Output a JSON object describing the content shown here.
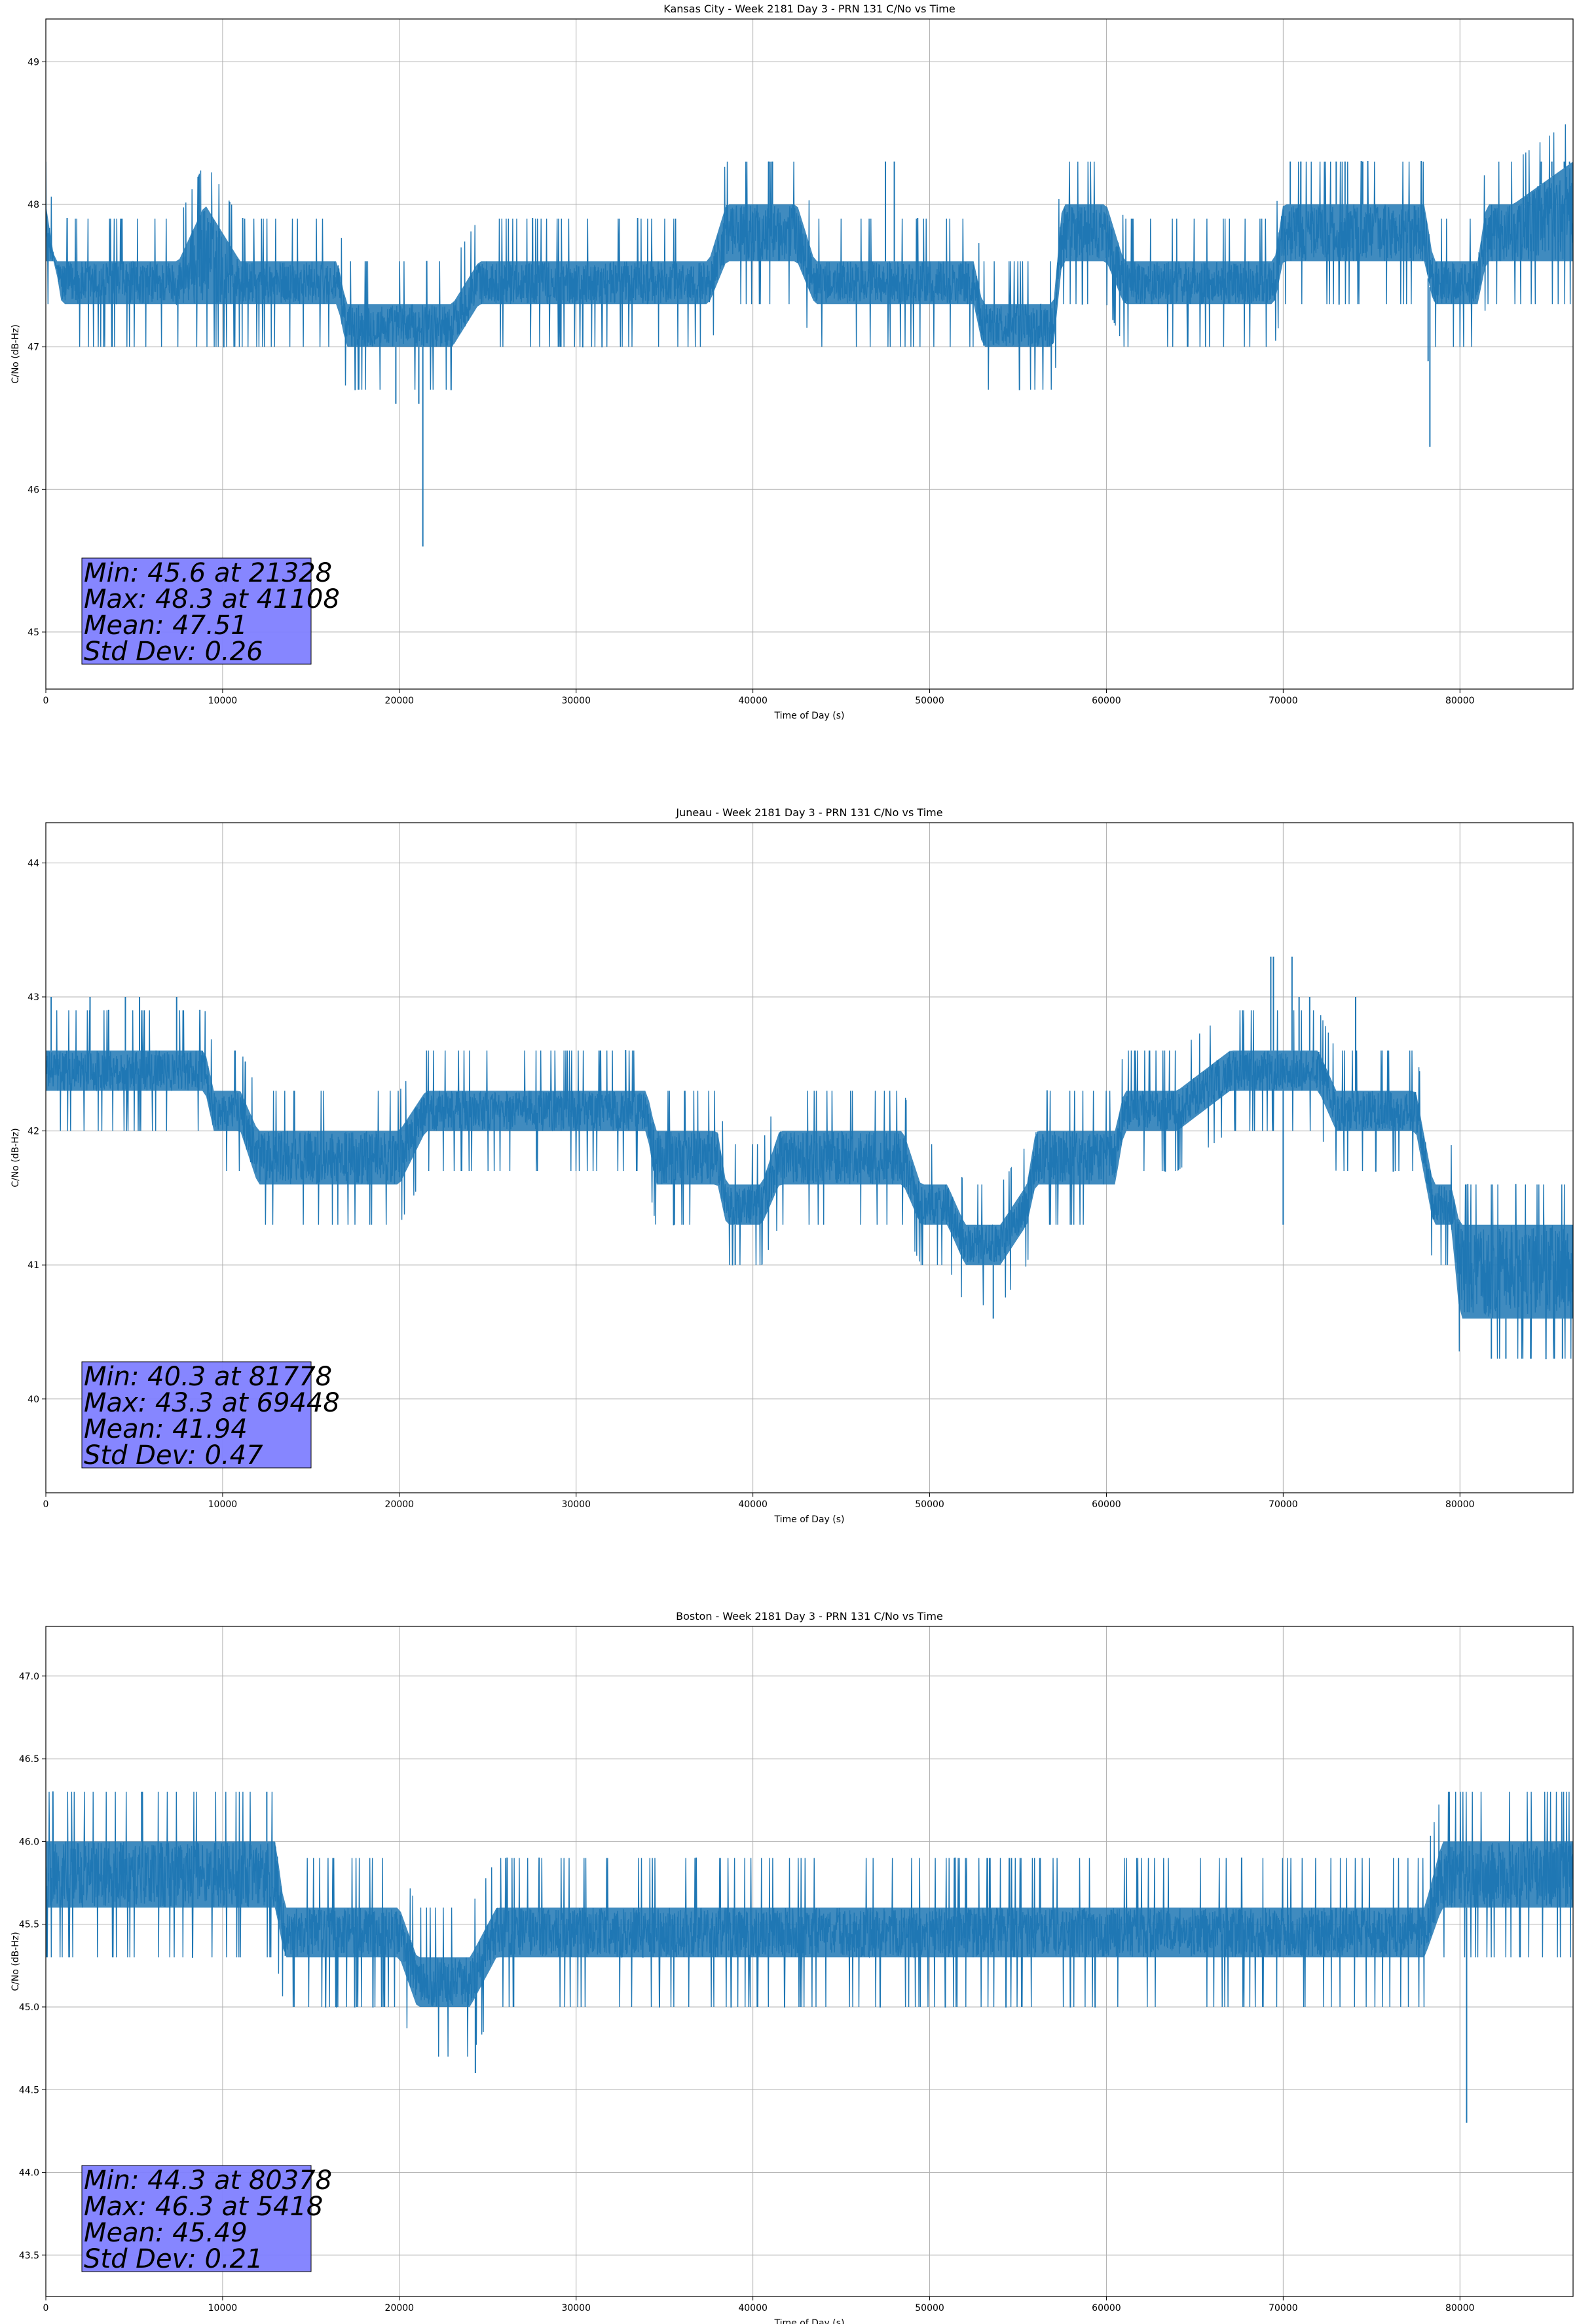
{
  "figure": {
    "chart_data": [
      {
        "type": "line",
        "title": "Kansas City - Week 2181 Day 3 - PRN 131 C/No vs Time",
        "xlabel": "Time of Day (s)",
        "ylabel": "C/No (dB-Hz)",
        "xlim": [
          0,
          86400
        ],
        "ylim": [
          44.6,
          49.3
        ],
        "xticks": [
          0,
          10000,
          20000,
          30000,
          40000,
          50000,
          60000,
          70000,
          80000
        ],
        "yticks": [
          45,
          46,
          47,
          48,
          49
        ],
        "grid": true,
        "series_color": "#1f77b4",
        "stats_box": {
          "lines": [
            "Min: 45.6 at 21328",
            "Max: 48.3 at 41108",
            "Mean: 47.51",
            "Std Dev: 0.26"
          ],
          "fill": "#7f7fff"
        },
        "series": [
          {
            "band_x": [
              0,
              500,
              900,
              2000,
              4000,
              6000,
              7500,
              9000,
              11000,
              13000,
              15000,
              16500,
              17000,
              18500,
              20000,
              21500,
              23000,
              24500,
              27000,
              30000,
              33000,
              35500,
              37500,
              38500,
              40000,
              42500,
              43500,
              44000,
              46000,
              47500,
              48000,
              50000,
              51500,
              52500,
              53000,
              55000,
              57000,
              57500,
              58000,
              60000,
              61000,
              62000,
              65000,
              67000,
              69500,
              70000,
              72000,
              75000,
              78000,
              78500,
              79000,
              80000,
              81000,
              81500,
              83000,
              86400
            ],
            "band_low": [
              47.6,
              47.6,
              47.3,
              47.3,
              47.3,
              47.3,
              47.3,
              47.3,
              47.3,
              47.3,
              47.3,
              47.3,
              47.0,
              47.0,
              47.0,
              47.0,
              47.0,
              47.3,
              47.3,
              47.3,
              47.3,
              47.3,
              47.3,
              47.6,
              47.6,
              47.6,
              47.3,
              47.3,
              47.3,
              47.3,
              47.3,
              47.3,
              47.3,
              47.3,
              47.0,
              47.0,
              47.0,
              47.6,
              47.6,
              47.6,
              47.3,
              47.3,
              47.3,
              47.3,
              47.3,
              47.6,
              47.6,
              47.6,
              47.6,
              47.3,
              47.3,
              47.3,
              47.3,
              47.6,
              47.6,
              47.6
            ],
            "band_high": [
              48.0,
              47.6,
              47.6,
              47.6,
              47.6,
              47.6,
              47.6,
              48.0,
              47.6,
              47.6,
              47.6,
              47.6,
              47.3,
              47.3,
              47.3,
              47.3,
              47.3,
              47.6,
              47.6,
              47.6,
              47.6,
              47.6,
              47.6,
              48.0,
              48.0,
              48.0,
              47.6,
              47.6,
              47.6,
              47.6,
              47.6,
              47.6,
              47.6,
              47.6,
              47.3,
              47.3,
              47.3,
              48.0,
              48.0,
              48.0,
              47.6,
              47.6,
              47.6,
              47.6,
              47.6,
              48.0,
              48.0,
              48.0,
              48.0,
              47.6,
              47.6,
              47.6,
              47.6,
              48.0,
              48.0,
              48.3
            ],
            "spikes": [
              [
                19800,
                46.6
              ],
              [
                21100,
                46.6
              ],
              [
                21328,
                45.6
              ],
              [
                78300,
                46.3
              ],
              [
                78200,
                46.9
              ],
              [
                41108,
                48.3
              ],
              [
                40900,
                48.3
              ],
              [
                47500,
                48.3
              ],
              [
                48000,
                48.3
              ],
              [
                70400,
                48.3
              ],
              [
                71000,
                48.3
              ],
              [
                73000,
                48.3
              ],
              [
                73500,
                48.3
              ],
              [
                74500,
                48.3
              ],
              [
                84600,
                48.3
              ],
              [
                85200,
                48.3
              ],
              [
                85900,
                48.3
              ],
              [
                86200,
                48.3
              ]
            ]
          }
        ]
      },
      {
        "type": "line",
        "title": "Juneau - Week 2181 Day 3 - PRN 131 C/No vs Time",
        "xlabel": "Time of Day (s)",
        "ylabel": "C/No (dB-Hz)",
        "xlim": [
          0,
          86400
        ],
        "ylim": [
          39.3,
          44.3
        ],
        "xticks": [
          0,
          10000,
          20000,
          30000,
          40000,
          50000,
          60000,
          70000,
          80000
        ],
        "yticks": [
          40,
          41,
          42,
          43,
          44
        ],
        "grid": true,
        "series_color": "#1f77b4",
        "stats_box": {
          "lines": [
            "Min: 40.3 at 81778",
            "Max: 43.3 at 69448",
            "Mean: 41.94",
            "Std Dev: 0.47"
          ],
          "fill": "#7f7fff"
        },
        "series": [
          {
            "band_x": [
              0,
              3000,
              6000,
              9000,
              9500,
              11000,
              12000,
              15000,
              18000,
              20000,
              21500,
              25000,
              28000,
              29000,
              32000,
              34000,
              34500,
              36000,
              38000,
              38500,
              39500,
              40500,
              41500,
              44000,
              46500,
              48500,
              49500,
              51000,
              52000,
              54000,
              55500,
              56000,
              59000,
              60500,
              61000,
              64000,
              67000,
              70000,
              72000,
              73000,
              75000,
              77500,
              78500,
              79500,
              80000,
              81500,
              83000,
              86400
            ],
            "band_low": [
              42.3,
              42.3,
              42.3,
              42.3,
              42.0,
              42.0,
              41.6,
              41.6,
              41.6,
              41.6,
              42.0,
              42.0,
              42.0,
              42.0,
              42.0,
              42.0,
              41.6,
              41.6,
              41.6,
              41.3,
              41.3,
              41.3,
              41.6,
              41.6,
              41.6,
              41.6,
              41.3,
              41.3,
              41.0,
              41.0,
              41.3,
              41.6,
              41.6,
              41.6,
              42.0,
              42.0,
              42.3,
              42.3,
              42.3,
              42.0,
              42.0,
              42.0,
              41.3,
              41.3,
              40.6,
              40.6,
              40.6,
              40.6
            ],
            "band_high": [
              42.6,
              42.6,
              42.6,
              42.6,
              42.3,
              42.3,
              42.0,
              42.0,
              42.0,
              42.0,
              42.3,
              42.3,
              42.3,
              42.3,
              42.3,
              42.3,
              42.0,
              42.0,
              42.0,
              41.6,
              41.6,
              41.6,
              42.0,
              42.0,
              42.0,
              42.0,
              41.6,
              41.6,
              41.3,
              41.3,
              41.6,
              42.0,
              42.0,
              42.0,
              42.3,
              42.3,
              42.6,
              42.6,
              42.6,
              42.3,
              42.3,
              42.3,
              41.6,
              41.6,
              41.3,
              41.3,
              41.3,
              41.3
            ],
            "spikes": [
              [
                300,
                43.0
              ],
              [
                2500,
                43.0
              ],
              [
                4500,
                43.0
              ],
              [
                5300,
                43.0
              ],
              [
                7400,
                43.0
              ],
              [
                53600,
                40.6
              ],
              [
                69300,
                43.3
              ],
              [
                69448,
                43.3
              ],
              [
                70500,
                43.3
              ],
              [
                70900,
                43.0
              ],
              [
                71500,
                43.0
              ],
              [
                74100,
                43.0
              ],
              [
                39000,
                41.0
              ],
              [
                70000,
                41.3
              ],
              [
                81778,
                40.3
              ],
              [
                82600,
                40.3
              ],
              [
                84000,
                40.3
              ],
              [
                85800,
                40.3
              ]
            ]
          }
        ]
      },
      {
        "type": "line",
        "title": "Boston - Week 2181 Day 3 - PRN 131 C/No vs Time",
        "xlabel": "Time of Day (s)",
        "ylabel": "C/No (dB-Hz)",
        "xlim": [
          0,
          86400
        ],
        "ylim": [
          43.25,
          47.3
        ],
        "xticks": [
          0,
          10000,
          20000,
          30000,
          40000,
          50000,
          60000,
          70000,
          80000
        ],
        "yticks": [
          43.5,
          44.0,
          44.5,
          45.0,
          45.5,
          46.0,
          46.5,
          47.0
        ],
        "ytick_labels": [
          "43.5",
          "44.0",
          "44.5",
          "45.0",
          "45.5",
          "46.0",
          "46.5",
          "47.0"
        ],
        "grid": true,
        "series_color": "#1f77b4",
        "stats_box": {
          "lines": [
            "Min: 44.3 at 80378",
            "Max: 46.3 at 5418",
            "Mean: 45.49",
            "Std Dev: 0.21"
          ],
          "fill": "#7f7fff"
        },
        "series": [
          {
            "band_x": [
              0,
              2000,
              5000,
              9000,
              11000,
              13000,
              13500,
              15000,
              18000,
              20000,
              21000,
              24000,
              25500,
              26000,
              30000,
              35000,
              40000,
              45000,
              50000,
              55000,
              60000,
              65000,
              70000,
              75000,
              78000,
              79000,
              80000,
              82000,
              84000,
              86400
            ],
            "band_low": [
              45.6,
              45.6,
              45.6,
              45.6,
              45.6,
              45.6,
              45.3,
              45.3,
              45.3,
              45.3,
              45.0,
              45.0,
              45.3,
              45.3,
              45.3,
              45.3,
              45.3,
              45.3,
              45.3,
              45.3,
              45.3,
              45.3,
              45.3,
              45.3,
              45.3,
              45.6,
              45.6,
              45.6,
              45.6,
              45.6
            ],
            "band_high": [
              46.0,
              46.0,
              46.0,
              46.0,
              46.0,
              46.0,
              45.6,
              45.6,
              45.6,
              45.6,
              45.3,
              45.3,
              45.6,
              45.6,
              45.6,
              45.6,
              45.6,
              45.6,
              45.6,
              45.6,
              45.6,
              45.6,
              45.6,
              45.6,
              45.6,
              46.0,
              46.0,
              46.0,
              46.0,
              46.0
            ],
            "spikes": [
              [
                5418,
                46.3
              ],
              [
                12500,
                46.3
              ],
              [
                24300,
                44.6
              ],
              [
                80378,
                44.3
              ]
            ]
          }
        ]
      }
    ]
  }
}
